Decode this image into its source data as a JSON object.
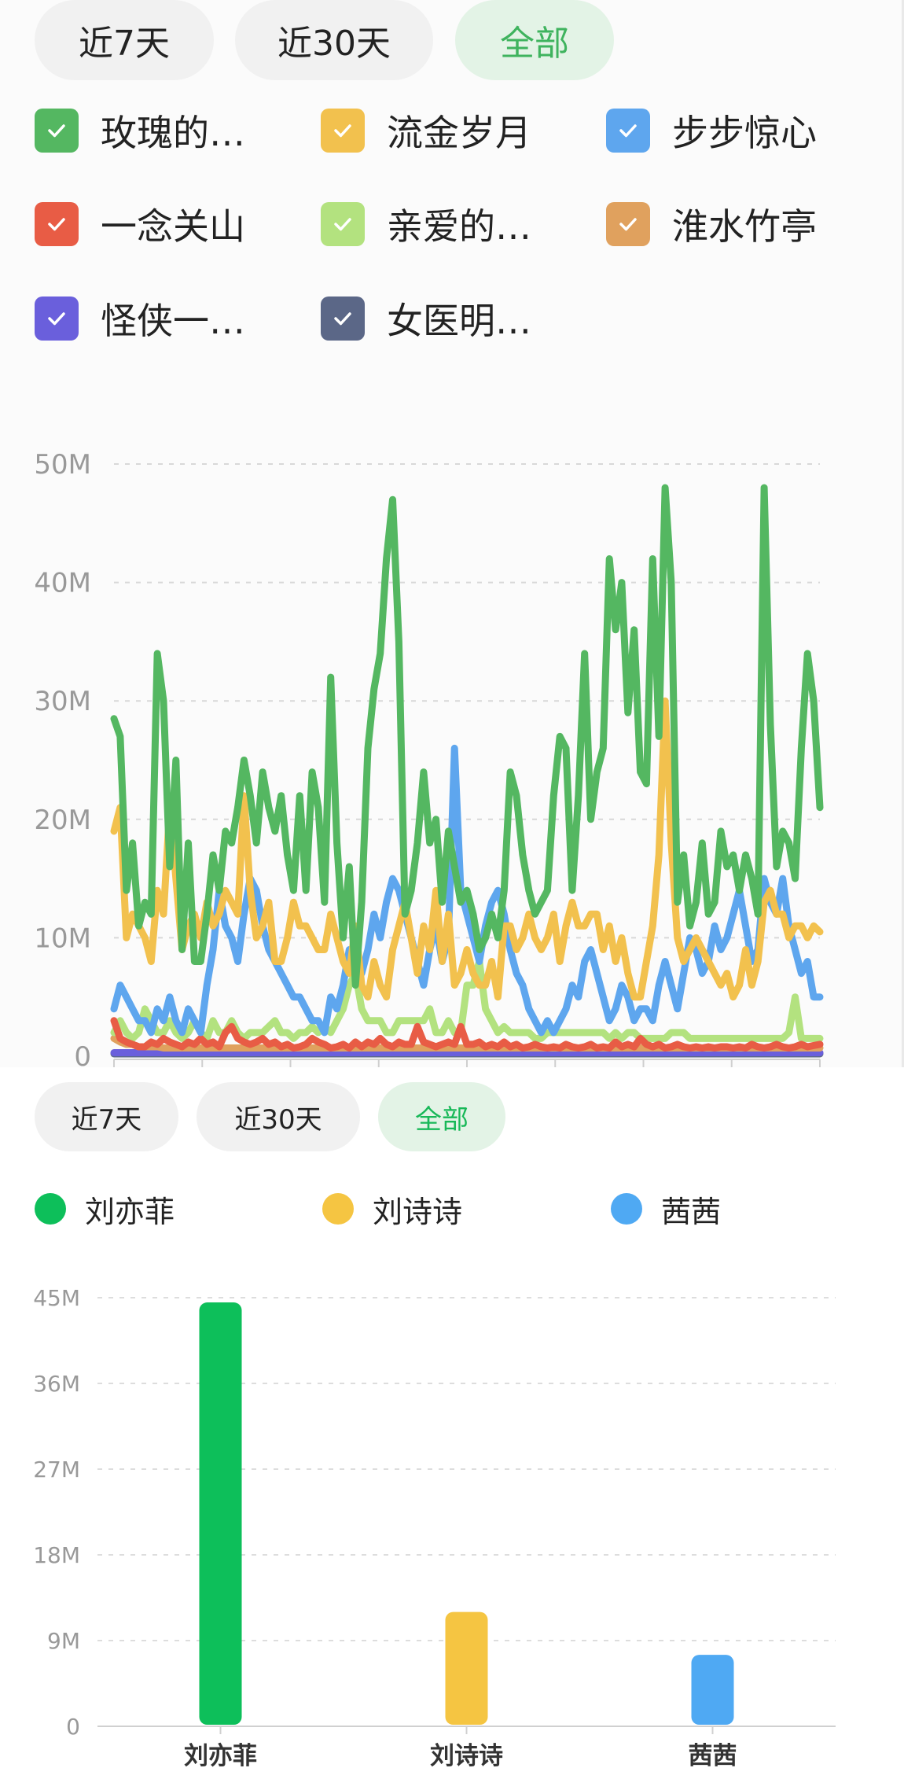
{
  "line_panel": {
    "tabs": [
      {
        "label": "近7天",
        "active": false
      },
      {
        "label": "近30天",
        "active": false
      },
      {
        "label": "全部",
        "active": true
      }
    ],
    "legend": [
      {
        "label": "玫瑰的…",
        "color": "#54b761",
        "icon": "check-icon",
        "checked": true
      },
      {
        "label": "流金岁月",
        "color": "#f2c14e",
        "icon": "check-icon",
        "checked": true
      },
      {
        "label": "步步惊心",
        "color": "#5ea6ee",
        "icon": "check-icon",
        "checked": true
      },
      {
        "label": "一念关山",
        "color": "#e85c45",
        "icon": "check-icon",
        "checked": true
      },
      {
        "label": "亲爱的…",
        "color": "#b3e27f",
        "icon": "check-icon",
        "checked": true
      },
      {
        "label": "淮水竹亭",
        "color": "#e0a15e",
        "icon": "check-icon",
        "checked": true
      },
      {
        "label": "怪侠一…",
        "color": "#6a5fdc",
        "icon": "check-icon",
        "checked": true
      },
      {
        "label": "女医明…",
        "color": "#5b6787",
        "icon": "check-icon",
        "checked": true
      }
    ]
  },
  "bar_panel": {
    "tabs": [
      {
        "label": "近7天",
        "active": false
      },
      {
        "label": "近30天",
        "active": false
      },
      {
        "label": "全部",
        "active": true
      }
    ],
    "legend": [
      {
        "label": "刘亦菲",
        "color": "#0dbf5a"
      },
      {
        "label": "刘诗诗",
        "color": "#f5c542"
      },
      {
        "label": "茜茜",
        "color": "#4fa9f3"
      }
    ]
  },
  "chart_data": [
    {
      "type": "line",
      "ylim": [
        0,
        50
      ],
      "ticks": [
        "0",
        "10M",
        "20M",
        "30M",
        "40M",
        "50M"
      ],
      "tick_values": [
        0,
        10,
        20,
        30,
        40,
        50
      ],
      "grid": true,
      "series": [
        {
          "name": "玫瑰的…",
          "color": "#54b761",
          "values": [
            28.5,
            27,
            14,
            18,
            11,
            13,
            12,
            34,
            30,
            16,
            25,
            9,
            18,
            8,
            8,
            12,
            17,
            14,
            19,
            18,
            21,
            25,
            22,
            18,
            24,
            21,
            19,
            22,
            17,
            14,
            22,
            14,
            24,
            21,
            13,
            32,
            18,
            10,
            16,
            6,
            13,
            26,
            31,
            34,
            42,
            47,
            35,
            12,
            14,
            18,
            24,
            18,
            20,
            13,
            19,
            16,
            13,
            14,
            12,
            9,
            10,
            12,
            10,
            14,
            24,
            22,
            17,
            14,
            12,
            13,
            14,
            22,
            27,
            26,
            14,
            22,
            34,
            20,
            24,
            26,
            42,
            36,
            40,
            29,
            36,
            24,
            23,
            42,
            27,
            48,
            40,
            13,
            17,
            11,
            13,
            18,
            12,
            13,
            19,
            16,
            17,
            14,
            17,
            15,
            12,
            48,
            28,
            16,
            19,
            18,
            15,
            26,
            34,
            30,
            21
          ]
        },
        {
          "name": "流金岁月",
          "color": "#f2c14e",
          "values": [
            19,
            21,
            10,
            12,
            11,
            10,
            8,
            14,
            12,
            21,
            15,
            9,
            11,
            12,
            10,
            13,
            11,
            12,
            14,
            13,
            12,
            22,
            14,
            10,
            11,
            13,
            8,
            8,
            10,
            13,
            11,
            11,
            10,
            9,
            9,
            12,
            10,
            8,
            7,
            11,
            6,
            5,
            8,
            6,
            5,
            9,
            11,
            13,
            10,
            7,
            11,
            9,
            14,
            8,
            12,
            6,
            7,
            9,
            7,
            6,
            6,
            8,
            5,
            11,
            11,
            9,
            10,
            12,
            10,
            9,
            10,
            12,
            8,
            11,
            13,
            11,
            11,
            12,
            12,
            9,
            11,
            8,
            10,
            7,
            5,
            5,
            8,
            11,
            17,
            30,
            18,
            10,
            8,
            9,
            10,
            9,
            8,
            7,
            6,
            7,
            5,
            6,
            9,
            6,
            8,
            13,
            14,
            12,
            12,
            10,
            11,
            11,
            10,
            11,
            10.5
          ]
        },
        {
          "name": "步步惊心",
          "color": "#5ea6ee",
          "values": [
            4,
            6,
            5,
            4,
            3,
            3,
            2,
            4,
            3,
            5,
            3,
            2,
            4,
            3,
            2,
            6,
            9,
            14,
            11,
            10,
            8,
            12,
            15,
            14,
            11,
            9,
            8,
            7,
            6,
            5,
            5,
            4,
            3,
            3,
            2,
            5,
            4,
            6,
            9,
            8,
            7,
            9,
            12,
            10,
            13,
            15,
            14,
            12,
            10,
            8,
            6,
            9,
            11,
            8,
            10,
            26,
            14,
            12,
            10,
            8,
            11,
            13,
            14,
            12,
            9,
            7,
            6,
            4,
            3,
            2,
            3,
            2,
            3,
            4,
            6,
            5,
            8,
            9,
            7,
            5,
            3,
            4,
            6,
            5,
            3,
            4,
            4,
            3,
            6,
            8,
            6,
            4,
            7,
            10,
            9,
            7,
            8,
            11,
            9,
            10,
            12,
            14,
            11,
            8,
            9,
            15,
            13,
            12,
            15,
            11,
            9,
            7,
            8,
            5,
            5
          ]
        },
        {
          "name": "一念关山",
          "color": "#e85c45",
          "values": [
            3,
            1.5,
            1.2,
            1,
            0.8,
            0.8,
            1.2,
            1,
            1.5,
            1.2,
            1,
            0.8,
            1.2,
            1,
            1.5,
            1,
            1.2,
            0.8,
            2,
            2.5,
            1.5,
            1.2,
            1,
            1.2,
            1.5,
            1,
            1.2,
            0.8,
            1,
            0.7,
            0.8,
            1,
            1.5,
            1.2,
            1,
            0.7,
            0.8,
            1,
            0.7,
            1.2,
            0.8,
            1.2,
            1,
            1.5,
            1,
            0.8,
            1.2,
            1,
            1,
            2.5,
            1.2,
            1,
            0.8,
            1,
            1.2,
            1,
            2.5,
            1,
            1,
            1.2,
            0.8,
            1,
            0.8,
            1.2,
            0.8,
            1,
            0.7,
            0.8,
            1,
            0.8,
            0.7,
            0.8,
            0.7,
            1,
            0.8,
            0.7,
            0.8,
            1,
            0.7,
            0.8,
            0.7,
            1.2,
            0.8,
            1,
            0.8,
            1.5,
            1,
            0.8,
            1,
            0.7,
            0.8,
            1,
            0.8,
            0.7,
            0.8,
            0.7,
            0.8,
            0.7,
            0.8,
            0.8,
            0.7,
            0.8,
            0.7,
            1,
            0.8,
            0.7,
            0.8,
            1,
            0.8,
            0.7,
            0.8,
            1,
            0.8,
            0.9,
            1
          ]
        },
        {
          "name": "亲爱的…",
          "color": "#b3e27f",
          "values": [
            2,
            3,
            2,
            1.5,
            2,
            4,
            3,
            2,
            2,
            3,
            2,
            1.5,
            2,
            3,
            2,
            1.5,
            3,
            2,
            2,
            3,
            2,
            1.5,
            2,
            2,
            2,
            2.5,
            3,
            2,
            2,
            1.5,
            2,
            2,
            2.5,
            2,
            2.5,
            2,
            3,
            4,
            6,
            7,
            4,
            3,
            3,
            3,
            2,
            2,
            3,
            3,
            3,
            3,
            3,
            4,
            2,
            2,
            3,
            2,
            2,
            6,
            6,
            8,
            4,
            3,
            2,
            2.5,
            2,
            2,
            2,
            2,
            1.5,
            1.5,
            2,
            2,
            2,
            2,
            2,
            2,
            2,
            2,
            2,
            2,
            1.5,
            2,
            1.5,
            2,
            2,
            1.5,
            1.5,
            1.5,
            1.5,
            1.5,
            2,
            2,
            2,
            1.5,
            1.5,
            1.5,
            1.5,
            1.5,
            1.5,
            1.5,
            1.5,
            1.5,
            1.5,
            1.5,
            1.5,
            1.5,
            1.5,
            1.5,
            1.5,
            2,
            5,
            1.5,
            1.5,
            1.5,
            1.5
          ]
        },
        {
          "name": "淮水竹亭",
          "color": "#e0a15e",
          "values": [
            1.5,
            1.2,
            1,
            1,
            0.8,
            0.8,
            0.8,
            0.8,
            0.7,
            0.7,
            0.7,
            0.7,
            0.7,
            0.7,
            0.7,
            0.7,
            0.7,
            0.7,
            0.7,
            0.7,
            0.7,
            0.7,
            0.7,
            0.7,
            0.7,
            0.7,
            0.7,
            0.7,
            0.7,
            0.7,
            0.7,
            0.7,
            0.7,
            0.7,
            0.7,
            0.7,
            0.7,
            0.7,
            0.7,
            0.7,
            0.7,
            0.7,
            0.7,
            0.7,
            0.7,
            0.7,
            0.7,
            0.7,
            0.7,
            0.7,
            0.7,
            0.7,
            0.7,
            0.7,
            0.7,
            0.7,
            0.7,
            0.7,
            0.7,
            0.7,
            0.7,
            0.7,
            0.7,
            0.7,
            0.7,
            0.7,
            0.7,
            0.7,
            0.7,
            0.7,
            0.7,
            0.7,
            0.7,
            0.7,
            0.7,
            0.7,
            0.7,
            0.7,
            0.7,
            0.7,
            0.7,
            0.7,
            0.7,
            0.7,
            0.7,
            0.7,
            0.7,
            0.7,
            0.7,
            0.7,
            0.7,
            0.7,
            0.7,
            0.7,
            0.7,
            0.7,
            0.7,
            0.7,
            0.7,
            0.7,
            0.7,
            0.7,
            0.7,
            0.7,
            0.7,
            0.7,
            0.7,
            0.7,
            0.7,
            0.7,
            0.7,
            0.7,
            0.7,
            0.7,
            0.7
          ]
        },
        {
          "name": "怪侠一…",
          "color": "#6a5fdc",
          "values": [
            0.3,
            0.3,
            0.3,
            0.3,
            0.3,
            0.3,
            0.3,
            0.3,
            0.3,
            0.3,
            0.3,
            0.3,
            0.3,
            0.3,
            0.3,
            0.3,
            0.3,
            0.3,
            0.3,
            0.3,
            0.3,
            0.3,
            0.3,
            0.3,
            0.3,
            0.3,
            0.3,
            0.3,
            0.3,
            0.3,
            0.3,
            0.3,
            0.3,
            0.3,
            0.3,
            0.3,
            0.3,
            0.3,
            0.3,
            0.3,
            0.3,
            0.3,
            0.3,
            0.3,
            0.3,
            0.3,
            0.3,
            0.3,
            0.3,
            0.3,
            0.3,
            0.3,
            0.3,
            0.3,
            0.3,
            0.3,
            0.3,
            0.3,
            0.3,
            0.3,
            0.3,
            0.3,
            0.3,
            0.3,
            0.3,
            0.3,
            0.3,
            0.3,
            0.3,
            0.3,
            0.3,
            0.3,
            0.3,
            0.3,
            0.3,
            0.3,
            0.3,
            0.3,
            0.3,
            0.3,
            0.3,
            0.3,
            0.3,
            0.3,
            0.3,
            0.3,
            0.3,
            0.3,
            0.3,
            0.3,
            0.3,
            0.3,
            0.3,
            0.3,
            0.3,
            0.3,
            0.3,
            0.3,
            0.3,
            0.3,
            0.3,
            0.3,
            0.3,
            0.3,
            0.3,
            0.3,
            0.3,
            0.3,
            0.3,
            0.3,
            0.3,
            0.3,
            0.3,
            0.3,
            0.3
          ]
        },
        {
          "name": "女医明…",
          "color": "#5b6787",
          "values": [
            0.2,
            0.2,
            0.2,
            0.2,
            0.2,
            0.2,
            0.2,
            0.2,
            0.2,
            0.2,
            0.2,
            0.2,
            0.2,
            0.2,
            0.2,
            0.2,
            0.2,
            0.2,
            0.2,
            0.2,
            0.2,
            0.2,
            0.2,
            0.2,
            0.2,
            0.2,
            0.2,
            0.2,
            0.2,
            0.2,
            0.2,
            0.2,
            0.2,
            0.2,
            0.2,
            0.2,
            0.2,
            0.2,
            0.2,
            0.2,
            0.2,
            0.2,
            0.2,
            0.2,
            0.2,
            0.2,
            0.2,
            0.2,
            0.2,
            0.2,
            0.2,
            0.2,
            0.2,
            0.2,
            0.2,
            0.2,
            0.2,
            0.2,
            0.2,
            0.2,
            0.2,
            0.2,
            0.2,
            0.2,
            0.2,
            0.2,
            0.2,
            0.2,
            0.2,
            0.2,
            0.2,
            0.2,
            0.2,
            0.2,
            0.2,
            0.2,
            0.2,
            0.2,
            0.2,
            0.2,
            0.2,
            0.2,
            0.2,
            0.2,
            0.2,
            0.2,
            0.2,
            0.2,
            0.2,
            0.2,
            0.2,
            0.2,
            0.2,
            0.2,
            0.2,
            0.2,
            0.2,
            0.2,
            0.2,
            0.2,
            0.2,
            0.2,
            0.2,
            0.2,
            0.2,
            0.2,
            0.2,
            0.2,
            0.2,
            0.2,
            0.2,
            0.2,
            0.2,
            0.2,
            0.2
          ]
        }
      ]
    },
    {
      "type": "bar",
      "categories": [
        "刘亦菲",
        "刘诗诗",
        "茜茜"
      ],
      "values": [
        44.5,
        12,
        7.5
      ],
      "colors": [
        "#0dbf5a",
        "#f5c542",
        "#4fa9f3"
      ],
      "ylim": [
        0,
        45
      ],
      "ticks": [
        "0",
        "9M",
        "18M",
        "27M",
        "36M",
        "45M"
      ],
      "tick_values": [
        0,
        9,
        18,
        27,
        36,
        45
      ],
      "grid": true
    }
  ]
}
